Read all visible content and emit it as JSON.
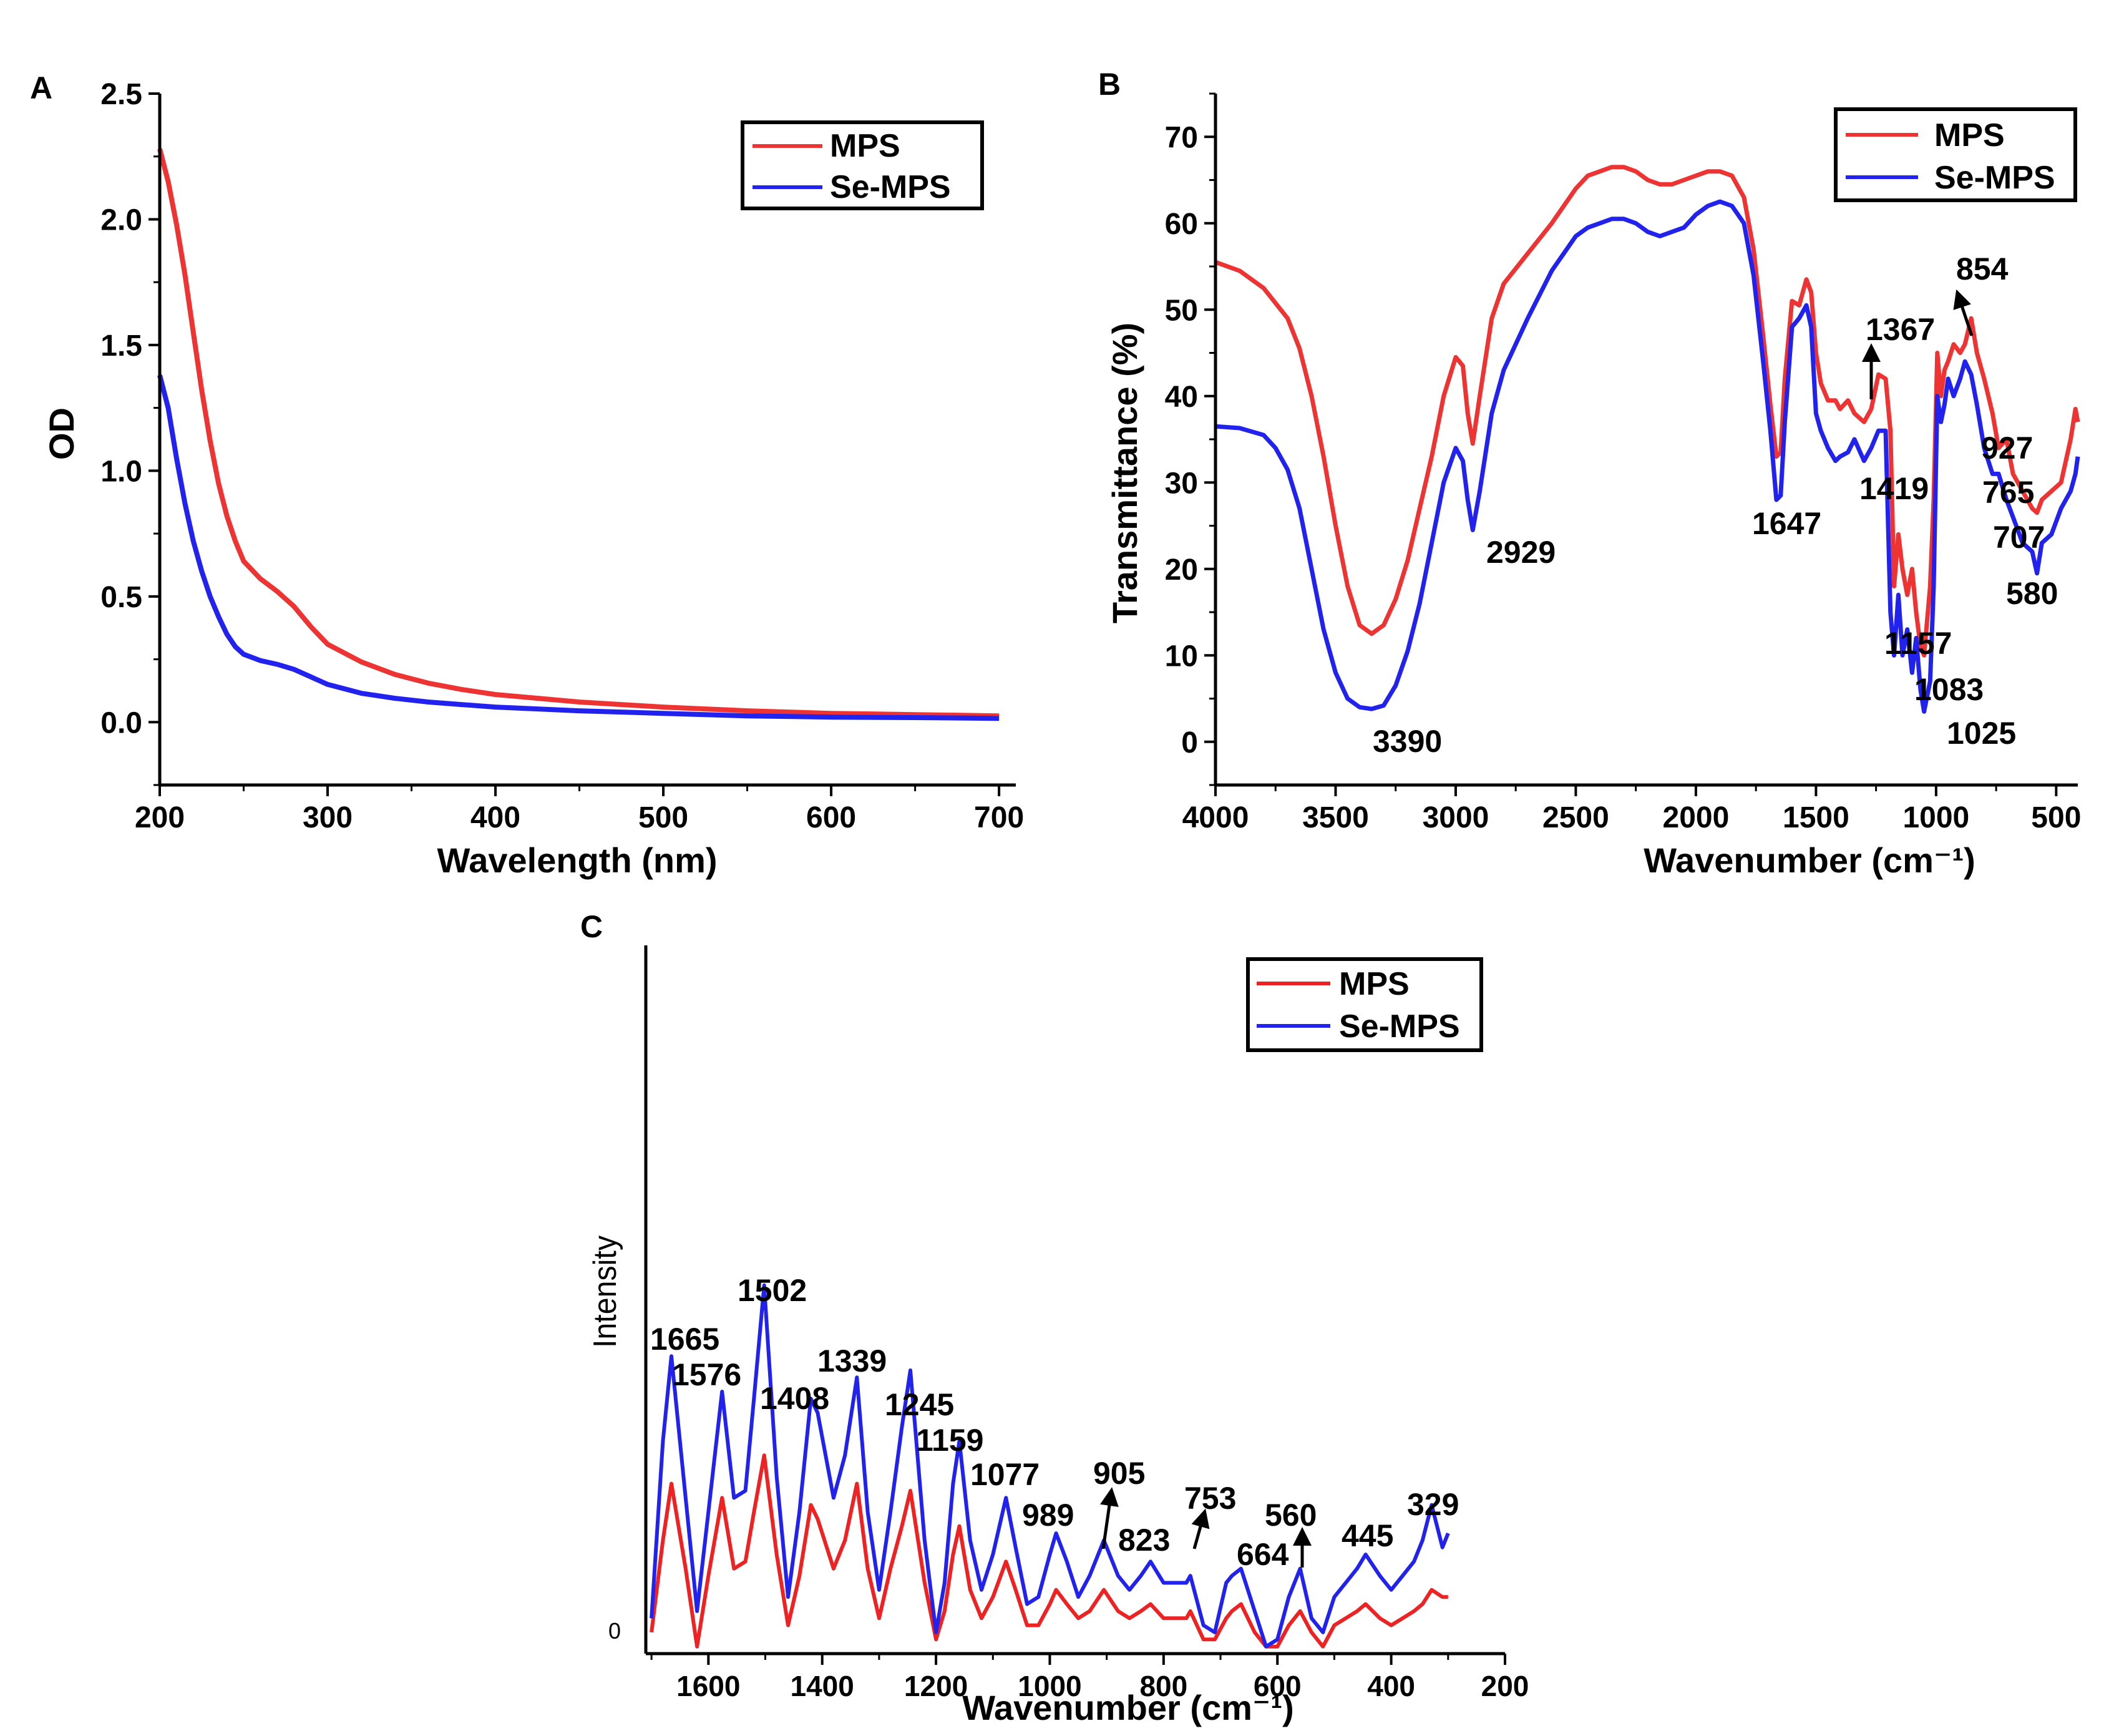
{
  "figure": {
    "panels": [
      "A",
      "B",
      "C"
    ]
  },
  "chart_data": [
    {
      "id": "A",
      "type": "line",
      "title": "",
      "panel_label": "A",
      "xlabel": "Wavelength (nm)",
      "ylabel": "OD",
      "xlim": [
        200,
        710
      ],
      "ylim": [
        -0.25,
        2.5
      ],
      "xticks": [
        200,
        300,
        400,
        500,
        600,
        700
      ],
      "yticks": [
        0.0,
        0.5,
        1.0,
        1.5,
        2.0,
        2.5
      ],
      "xtick_labels": [
        "200",
        "300",
        "400",
        "500",
        "600",
        "700"
      ],
      "ytick_labels": [
        "0.0",
        "0.5",
        "1.0",
        "1.5",
        "2.0",
        "2.5"
      ],
      "legend": {
        "position": "top-right",
        "entries": [
          "MPS",
          "Se-MPS"
        ]
      },
      "series": [
        {
          "name": "MPS",
          "color": "#ee3333",
          "x": [
            200,
            205,
            210,
            215,
            220,
            225,
            230,
            235,
            240,
            245,
            250,
            260,
            270,
            280,
            290,
            300,
            320,
            340,
            360,
            380,
            400,
            450,
            500,
            550,
            600,
            650,
            700
          ],
          "y": [
            2.28,
            2.15,
            1.98,
            1.78,
            1.55,
            1.32,
            1.12,
            0.95,
            0.82,
            0.72,
            0.64,
            0.57,
            0.52,
            0.46,
            0.38,
            0.31,
            0.24,
            0.19,
            0.155,
            0.13,
            0.11,
            0.08,
            0.06,
            0.045,
            0.035,
            0.03,
            0.025
          ]
        },
        {
          "name": "Se-MPS",
          "color": "#2222ee",
          "x": [
            200,
            205,
            210,
            215,
            220,
            225,
            230,
            235,
            240,
            245,
            250,
            260,
            270,
            280,
            290,
            300,
            320,
            340,
            360,
            380,
            400,
            450,
            500,
            550,
            600,
            650,
            700
          ],
          "y": [
            1.38,
            1.25,
            1.05,
            0.87,
            0.72,
            0.6,
            0.5,
            0.42,
            0.35,
            0.3,
            0.27,
            0.245,
            0.23,
            0.21,
            0.18,
            0.15,
            0.115,
            0.095,
            0.08,
            0.07,
            0.06,
            0.045,
            0.035,
            0.025,
            0.02,
            0.018,
            0.015
          ]
        }
      ]
    },
    {
      "id": "B",
      "type": "line",
      "title": "",
      "panel_label": "B",
      "xlabel": "Wavenumber (cm⁻¹)",
      "ylabel": "Transmittance (%)",
      "xlim": [
        4000,
        410
      ],
      "ylim": [
        -5,
        75
      ],
      "xticks": [
        4000,
        3500,
        3000,
        2500,
        2000,
        1500,
        1000,
        500
      ],
      "yticks": [
        0,
        10,
        20,
        30,
        40,
        50,
        60,
        70
      ],
      "xtick_labels": [
        "4000",
        "3500",
        "3000",
        "2500",
        "2000",
        "1500",
        "1000",
        "500"
      ],
      "ytick_labels": [
        "0",
        "10",
        "20",
        "30",
        "40",
        "50",
        "60",
        "70"
      ],
      "legend": {
        "position": "top-right",
        "entries": [
          "MPS",
          "Se-MPS"
        ]
      },
      "series": [
        {
          "name": "MPS",
          "color": "#ee3333",
          "x": [
            4000,
            3900,
            3800,
            3700,
            3650,
            3600,
            3550,
            3500,
            3450,
            3400,
            3350,
            3300,
            3250,
            3200,
            3150,
            3100,
            3050,
            3000,
            2970,
            2950,
            2929,
            2900,
            2850,
            2800,
            2700,
            2600,
            2500,
            2450,
            2400,
            2350,
            2300,
            2250,
            2200,
            2150,
            2100,
            2050,
            2000,
            1950,
            1900,
            1850,
            1800,
            1760,
            1720,
            1690,
            1665,
            1647,
            1630,
            1600,
            1570,
            1540,
            1520,
            1500,
            1480,
            1450,
            1419,
            1400,
            1367,
            1340,
            1300,
            1270,
            1240,
            1210,
            1190,
            1175,
            1157,
            1140,
            1120,
            1100,
            1083,
            1065,
            1050,
            1025,
            1010,
            995,
            980,
            965,
            950,
            927,
            900,
            880,
            854,
            830,
            800,
            765,
            740,
            707,
            680,
            640,
            600,
            580,
            560,
            520,
            480,
            440,
            420,
            410
          ],
          "y": [
            55.5,
            54.5,
            52.5,
            49,
            45.5,
            40,
            33,
            25,
            18,
            13.5,
            12.5,
            13.5,
            16.5,
            21,
            27,
            33,
            40,
            44.5,
            43.5,
            38,
            34.5,
            40,
            49,
            53,
            56.5,
            60,
            64,
            65.5,
            66,
            66.5,
            66.5,
            66,
            65,
            64.5,
            64.5,
            65,
            65.5,
            66,
            66,
            65.5,
            63,
            57,
            47,
            39,
            33,
            33.5,
            42,
            51,
            50.5,
            53.5,
            52,
            45,
            41.5,
            39.5,
            39.5,
            38.5,
            39.5,
            38,
            37,
            38.5,
            42.5,
            42,
            36,
            18,
            24,
            20,
            17,
            20,
            15,
            11,
            10,
            18,
            28,
            45,
            40,
            43,
            44,
            46,
            45,
            46,
            49,
            45,
            42,
            38,
            34,
            35,
            31,
            29,
            27,
            26.5,
            28,
            29,
            30,
            35,
            38.5,
            37
          ]
        },
        {
          "name": "Se-MPS",
          "color": "#2222ee",
          "x": [
            4000,
            3900,
            3800,
            3750,
            3700,
            3650,
            3600,
            3550,
            3500,
            3450,
            3400,
            3350,
            3300,
            3250,
            3200,
            3150,
            3100,
            3050,
            3000,
            2970,
            2950,
            2929,
            2900,
            2850,
            2800,
            2700,
            2600,
            2500,
            2450,
            2400,
            2350,
            2300,
            2250,
            2200,
            2150,
            2100,
            2050,
            2000,
            1950,
            1900,
            1850,
            1800,
            1760,
            1720,
            1690,
            1665,
            1647,
            1630,
            1600,
            1570,
            1540,
            1520,
            1500,
            1480,
            1450,
            1419,
            1400,
            1367,
            1340,
            1300,
            1270,
            1240,
            1210,
            1190,
            1175,
            1157,
            1140,
            1120,
            1100,
            1083,
            1065,
            1050,
            1025,
            1010,
            995,
            980,
            965,
            950,
            927,
            900,
            880,
            854,
            830,
            800,
            765,
            740,
            707,
            680,
            640,
            600,
            580,
            560,
            520,
            480,
            440,
            420,
            410
          ],
          "y": [
            36.5,
            36.3,
            35.5,
            34,
            31.5,
            27,
            20,
            13,
            8,
            5,
            4,
            3.8,
            4.2,
            6.5,
            10.5,
            16,
            23,
            30,
            34,
            32.5,
            28,
            24.5,
            29,
            38,
            43,
            49,
            54.5,
            58.5,
            59.5,
            60,
            60.5,
            60.5,
            60,
            59,
            58.5,
            59,
            59.5,
            61,
            62,
            62.5,
            62,
            60,
            54,
            44,
            36,
            28,
            28.5,
            37,
            48,
            49,
            50.5,
            48,
            38,
            36,
            34,
            32.5,
            33,
            33.5,
            35,
            32.5,
            34,
            36,
            36,
            15,
            10,
            17,
            10,
            13,
            8,
            12,
            6,
            3.5,
            7,
            18,
            40,
            37,
            39,
            42,
            40,
            42,
            44,
            42.5,
            39,
            34,
            31,
            31,
            28,
            26,
            23,
            22,
            19.5,
            23,
            24,
            27,
            29,
            31,
            33
          ]
        }
      ],
      "annotations": [
        "3390",
        "2929",
        "1647",
        "1419",
        "1367",
        "1157",
        "1083",
        "1025",
        "927",
        "854",
        "765",
        "707",
        "580"
      ]
    },
    {
      "id": "C",
      "type": "line",
      "title": "",
      "panel_label": "C",
      "xlabel": "Wavenumber (cm⁻¹)",
      "ylabel": "Intensity",
      "xlim": [
        1710,
        200
      ],
      "ylim": [
        0,
        100
      ],
      "xticks": [
        1600,
        1400,
        1200,
        1000,
        800,
        600,
        400,
        200
      ],
      "xtick_labels": [
        "1600",
        "1400",
        "1200",
        "1000",
        "800",
        "600",
        "400",
        "200"
      ],
      "ytick_labels": [
        "0"
      ],
      "legend": {
        "position": "top-center",
        "entries": [
          "MPS",
          "Se-MPS"
        ]
      },
      "series": [
        {
          "name": "MPS",
          "color": "#ee2222",
          "x": [
            1700,
            1680,
            1665,
            1640,
            1620,
            1600,
            1576,
            1555,
            1535,
            1520,
            1502,
            1480,
            1460,
            1440,
            1420,
            1408,
            1380,
            1360,
            1339,
            1320,
            1300,
            1280,
            1260,
            1245,
            1220,
            1200,
            1185,
            1170,
            1159,
            1140,
            1120,
            1100,
            1077,
            1060,
            1040,
            1020,
            1000,
            989,
            970,
            950,
            930,
            905,
            880,
            860,
            840,
            823,
            800,
            780,
            760,
            753,
            730,
            710,
            690,
            680,
            664,
            640,
            620,
            600,
            580,
            560,
            540,
            520,
            500,
            480,
            460,
            445,
            420,
            400,
            380,
            360,
            345,
            329,
            310,
            300
          ],
          "y": [
            3,
            16,
            24,
            12,
            1,
            11,
            22,
            12,
            13,
            20,
            28,
            14,
            4,
            11,
            21,
            19,
            12,
            16,
            24,
            12,
            5,
            12,
            18,
            23,
            10,
            2,
            6,
            14,
            18,
            9,
            5,
            8,
            13,
            9,
            4,
            4,
            7,
            9,
            7,
            5,
            6,
            9,
            6,
            5,
            6,
            7,
            5,
            5,
            5,
            6,
            2,
            2,
            5,
            6,
            7,
            3,
            1,
            1,
            4,
            6,
            3,
            1,
            4,
            5,
            6,
            7,
            5,
            4,
            5,
            6,
            7,
            9,
            8,
            8
          ]
        },
        {
          "name": "Se-MPS",
          "color": "#2222ee",
          "x": [
            1700,
            1680,
            1665,
            1640,
            1620,
            1600,
            1576,
            1555,
            1535,
            1520,
            1502,
            1480,
            1460,
            1440,
            1420,
            1408,
            1380,
            1360,
            1339,
            1320,
            1300,
            1280,
            1260,
            1245,
            1220,
            1200,
            1185,
            1170,
            1159,
            1140,
            1120,
            1100,
            1077,
            1060,
            1040,
            1020,
            1000,
            989,
            970,
            950,
            930,
            905,
            880,
            860,
            840,
            823,
            800,
            780,
            760,
            753,
            730,
            710,
            690,
            680,
            664,
            640,
            620,
            600,
            580,
            560,
            540,
            520,
            500,
            480,
            460,
            445,
            420,
            400,
            380,
            360,
            345,
            329,
            310,
            300
          ],
          "y": [
            5,
            30,
            42,
            22,
            6,
            20,
            37,
            22,
            23,
            36,
            52,
            25,
            8,
            20,
            36,
            34,
            22,
            28,
            39,
            20,
            9,
            20,
            32,
            40,
            16,
            3,
            10,
            24,
            30,
            16,
            9,
            14,
            22,
            15,
            7,
            8,
            14,
            17,
            13,
            8,
            11,
            16,
            11,
            9,
            11,
            13,
            10,
            10,
            10,
            11,
            4,
            3,
            10,
            11,
            12,
            6,
            1,
            2,
            8,
            12,
            5,
            3,
            8,
            10,
            12,
            14,
            11,
            9,
            11,
            13,
            16,
            21,
            15,
            17
          ]
        }
      ],
      "annotations": [
        "1665",
        "1576",
        "1502",
        "1408",
        "1339",
        "1245",
        "1159",
        "1077",
        "989",
        "905",
        "823",
        "753",
        "664",
        "560",
        "445",
        "329"
      ]
    }
  ]
}
